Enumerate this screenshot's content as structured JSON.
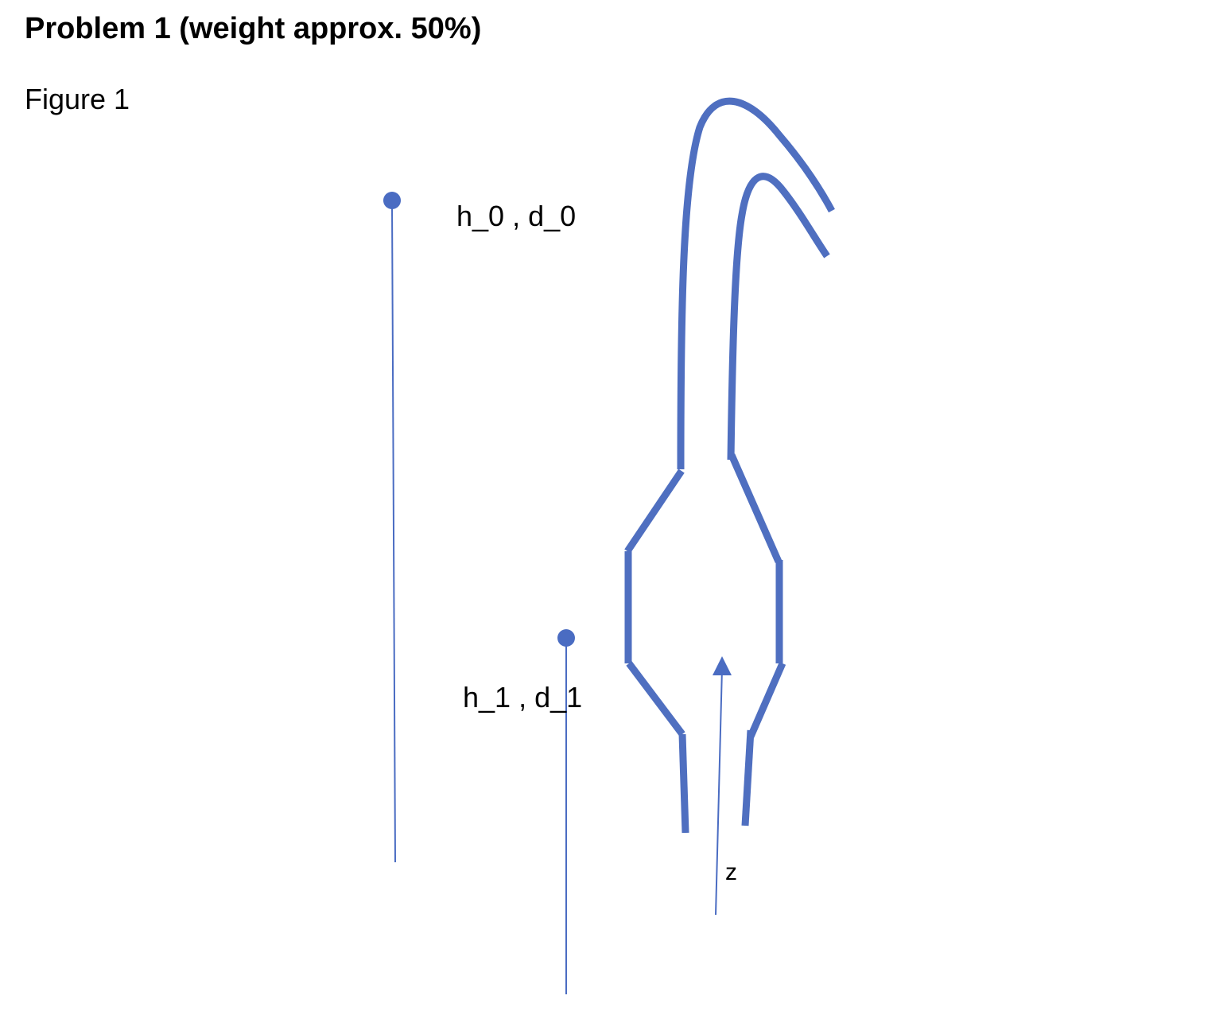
{
  "problem": {
    "heading": "Problem 1 (weight approx. 50%)"
  },
  "figure": {
    "caption": "Figure 1",
    "labels": {
      "point_0": "h_0 , d_0",
      "point_1": "h_1 , d_1",
      "axis": "z"
    },
    "colors": {
      "pipe": "#4f6fc0",
      "line": "#4a6cc2",
      "marker": "#4a6cc2"
    }
  }
}
